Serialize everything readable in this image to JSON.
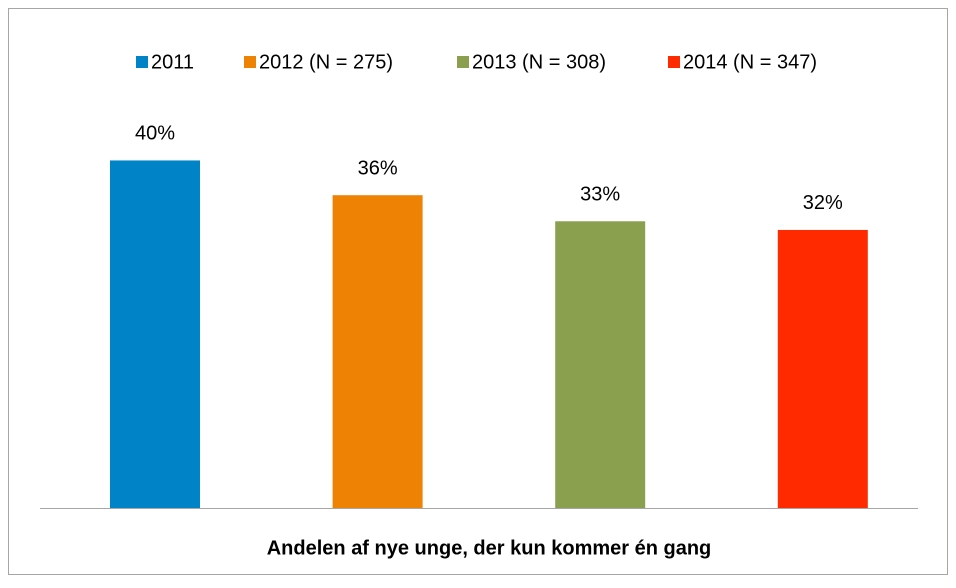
{
  "chart_data": {
    "type": "bar",
    "categories": [
      "Andelen af nye unge, der kun kommer én gang"
    ],
    "ylim": [
      0,
      45
    ],
    "series": [
      {
        "name": "2011",
        "color": "#0084c8",
        "values": [
          40
        ],
        "value_labels": [
          "40%"
        ]
      },
      {
        "name": "2012 (N = 275)",
        "color": "#ee8204",
        "values": [
          36
        ],
        "value_labels": [
          "36%"
        ]
      },
      {
        "name": "2013 (N = 308)",
        "color": "#8ba04e",
        "values": [
          33
        ],
        "value_labels": [
          "33%"
        ]
      },
      {
        "name": "2014 (N = 347)",
        "color": "#ff2a00",
        "values": [
          32
        ],
        "value_labels": [
          "32%"
        ]
      }
    ],
    "legend": "top"
  }
}
